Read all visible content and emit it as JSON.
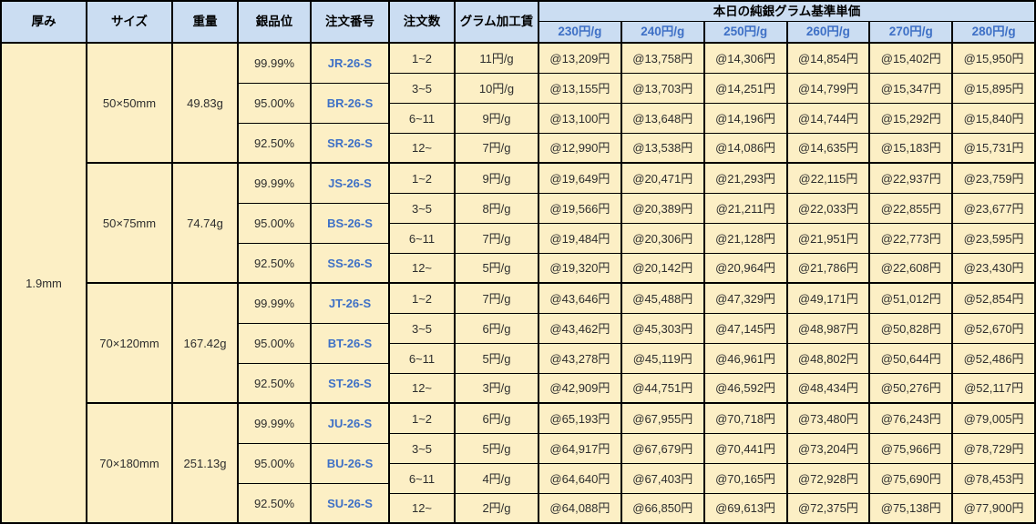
{
  "table": {
    "headers": {
      "thickness": "厚み",
      "size": "サイズ",
      "weight": "重量",
      "purity": "銀品位",
      "order_no": "注文番号",
      "order_qty": "注文数",
      "gram_fee": "グラム加工賃",
      "price_group": "本日の純銀グラム基準単価",
      "price_cols": [
        "230円/g",
        "240円/g",
        "250円/g",
        "260円/g",
        "270円/g",
        "280円/g"
      ]
    },
    "thickness_value": "1.9mm",
    "groups": [
      {
        "size": "50×50mm",
        "weight": "49.83g",
        "purities": [
          {
            "purity": "99.99%",
            "order_no": "JR-26-S"
          },
          {
            "purity": "95.00%",
            "order_no": "BR-26-S"
          },
          {
            "purity": "92.50%",
            "order_no": "SR-26-S"
          }
        ],
        "rows": [
          {
            "qty": "1~2",
            "fee": "11円/g",
            "prices": [
              "@13,209円",
              "@13,758円",
              "@14,306円",
              "@14,854円",
              "@15,402円",
              "@15,950円"
            ]
          },
          {
            "qty": "3~5",
            "fee": "10円/g",
            "prices": [
              "@13,155円",
              "@13,703円",
              "@14,251円",
              "@14,799円",
              "@15,347円",
              "@15,895円"
            ]
          },
          {
            "qty": "6~11",
            "fee": "9円/g",
            "prices": [
              "@13,100円",
              "@13,648円",
              "@14,196円",
              "@14,744円",
              "@15,292円",
              "@15,840円"
            ]
          },
          {
            "qty": "12~",
            "fee": "7円/g",
            "prices": [
              "@12,990円",
              "@13,538円",
              "@14,086円",
              "@14,635円",
              "@15,183円",
              "@15,731円"
            ]
          }
        ]
      },
      {
        "size": "50×75mm",
        "weight": "74.74g",
        "purities": [
          {
            "purity": "99.99%",
            "order_no": "JS-26-S"
          },
          {
            "purity": "95.00%",
            "order_no": "BS-26-S"
          },
          {
            "purity": "92.50%",
            "order_no": "SS-26-S"
          }
        ],
        "rows": [
          {
            "qty": "1~2",
            "fee": "9円/g",
            "prices": [
              "@19,649円",
              "@20,471円",
              "@21,293円",
              "@22,115円",
              "@22,937円",
              "@23,759円"
            ]
          },
          {
            "qty": "3~5",
            "fee": "8円/g",
            "prices": [
              "@19,566円",
              "@20,389円",
              "@21,211円",
              "@22,033円",
              "@22,855円",
              "@23,677円"
            ]
          },
          {
            "qty": "6~11",
            "fee": "7円/g",
            "prices": [
              "@19,484円",
              "@20,306円",
              "@21,128円",
              "@21,951円",
              "@22,773円",
              "@23,595円"
            ]
          },
          {
            "qty": "12~",
            "fee": "5円/g",
            "prices": [
              "@19,320円",
              "@20,142円",
              "@20,964円",
              "@21,786円",
              "@22,608円",
              "@23,430円"
            ]
          }
        ]
      },
      {
        "size": "70×120mm",
        "weight": "167.42g",
        "purities": [
          {
            "purity": "99.99%",
            "order_no": "JT-26-S"
          },
          {
            "purity": "95.00%",
            "order_no": "BT-26-S"
          },
          {
            "purity": "92.50%",
            "order_no": "ST-26-S"
          }
        ],
        "rows": [
          {
            "qty": "1~2",
            "fee": "7円/g",
            "prices": [
              "@43,646円",
              "@45,488円",
              "@47,329円",
              "@49,171円",
              "@51,012円",
              "@52,854円"
            ]
          },
          {
            "qty": "3~5",
            "fee": "6円/g",
            "prices": [
              "@43,462円",
              "@45,303円",
              "@47,145円",
              "@48,987円",
              "@50,828円",
              "@52,670円"
            ]
          },
          {
            "qty": "6~11",
            "fee": "5円/g",
            "prices": [
              "@43,278円",
              "@45,119円",
              "@46,961円",
              "@48,802円",
              "@50,644円",
              "@52,486円"
            ]
          },
          {
            "qty": "12~",
            "fee": "3円/g",
            "prices": [
              "@42,909円",
              "@44,751円",
              "@46,592円",
              "@48,434円",
              "@50,276円",
              "@52,117円"
            ]
          }
        ]
      },
      {
        "size": "70×180mm",
        "weight": "251.13g",
        "purities": [
          {
            "purity": "99.99%",
            "order_no": "JU-26-S"
          },
          {
            "purity": "95.00%",
            "order_no": "BU-26-S"
          },
          {
            "purity": "92.50%",
            "order_no": "SU-26-S"
          }
        ],
        "rows": [
          {
            "qty": "1~2",
            "fee": "6円/g",
            "prices": [
              "@65,193円",
              "@67,955円",
              "@70,718円",
              "@73,480円",
              "@76,243円",
              "@79,005円"
            ]
          },
          {
            "qty": "3~5",
            "fee": "5円/g",
            "prices": [
              "@64,917円",
              "@67,679円",
              "@70,441円",
              "@73,204円",
              "@75,966円",
              "@78,729円"
            ]
          },
          {
            "qty": "6~11",
            "fee": "4円/g",
            "prices": [
              "@64,640円",
              "@67,403円",
              "@70,165円",
              "@72,928円",
              "@75,690円",
              "@78,453円"
            ]
          },
          {
            "qty": "12~",
            "fee": "2円/g",
            "prices": [
              "@64,088円",
              "@66,850円",
              "@69,613円",
              "@72,375円",
              "@75,138円",
              "@77,900円"
            ]
          }
        ]
      }
    ],
    "colors": {
      "header_bg": "#CBDDF2",
      "body_bg": "#FCEFC5",
      "border": "#000000",
      "accent_blue": "#3E70C6",
      "text": "#2e2e2e"
    }
  }
}
